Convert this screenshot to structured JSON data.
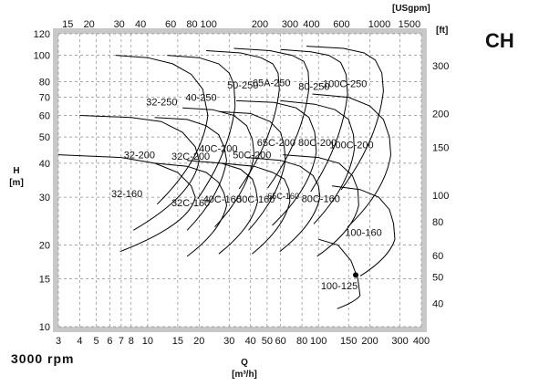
{
  "brand": "CH",
  "speed": "3000 rpm",
  "axis": {
    "y_label": "H",
    "y_unit": "[m]",
    "x_label": "Q",
    "x_unit": "[m³/h]",
    "top_unit": "[USgpm]",
    "right_unit": "[ft]"
  },
  "chart_data": {
    "type": "line",
    "xlabel": "Q [m³/h]",
    "ylabel": "H [m]",
    "x_scale": "log",
    "y_scale": "log",
    "xlim": [
      3,
      400
    ],
    "ylim": [
      10,
      120
    ],
    "x_ticks": [
      3,
      4,
      5,
      6,
      7,
      8,
      10,
      15,
      20,
      30,
      40,
      50,
      60,
      80,
      100,
      150,
      200,
      300,
      400
    ],
    "y_ticks": [
      10,
      15,
      20,
      30,
      40,
      50,
      60,
      70,
      80,
      100,
      120
    ],
    "top_axis": {
      "label": "[USgpm]",
      "ticks": [
        15,
        20,
        30,
        40,
        60,
        80,
        100,
        200,
        300,
        400,
        600,
        1000,
        1500
      ]
    },
    "right_axis": {
      "label": "[ft]",
      "ticks": [
        40,
        50,
        60,
        80,
        100,
        150,
        200,
        300
      ]
    },
    "series": [
      {
        "name": "32-250",
        "points": [
          [
            6.5,
            100
          ],
          [
            10,
            98
          ],
          [
            14,
            93
          ],
          [
            18,
            85
          ],
          [
            21,
            75
          ],
          [
            22.5,
            60
          ]
        ]
      },
      {
        "name": "40-250",
        "points": [
          [
            13,
            100
          ],
          [
            20,
            98
          ],
          [
            26,
            93
          ],
          [
            30,
            86
          ],
          [
            32,
            78
          ],
          [
            32.5,
            65
          ]
        ]
      },
      {
        "name": "50-250",
        "points": [
          [
            22,
            104
          ],
          [
            35,
            102
          ],
          [
            46,
            98
          ],
          [
            54,
            93
          ],
          [
            58,
            86
          ],
          [
            59,
            75
          ]
        ]
      },
      {
        "name": "65A-250",
        "points": [
          [
            32,
            106
          ],
          [
            52,
            104
          ],
          [
            70,
            100
          ],
          [
            82,
            95
          ],
          [
            87,
            87
          ],
          [
            88,
            76
          ]
        ]
      },
      {
        "name": "80-250",
        "points": [
          [
            60,
            105
          ],
          [
            90,
            103
          ],
          [
            115,
            100
          ],
          [
            135,
            94
          ],
          [
            145,
            85
          ],
          [
            148,
            72
          ]
        ]
      },
      {
        "name": "100C-250",
        "points": [
          [
            85,
            108
          ],
          [
            140,
            106
          ],
          [
            185,
            102
          ],
          [
            215,
            96
          ],
          [
            235,
            86
          ],
          [
            240,
            74
          ]
        ]
      },
      {
        "name": "32-200",
        "points": [
          [
            4,
            60
          ],
          [
            8,
            59
          ],
          [
            12,
            57
          ],
          [
            16,
            52
          ],
          [
            19,
            46
          ],
          [
            20,
            41
          ]
        ]
      },
      {
        "name": "32C-200",
        "points": [
          [
            11,
            59
          ],
          [
            17,
            58
          ],
          [
            22,
            55
          ],
          [
            26,
            51
          ],
          [
            28,
            46
          ],
          [
            29,
            41
          ]
        ]
      },
      {
        "name": "40C-200",
        "points": [
          [
            16,
            64
          ],
          [
            24,
            63
          ],
          [
            32,
            60
          ],
          [
            38,
            55
          ],
          [
            41,
            49
          ],
          [
            42,
            43
          ]
        ]
      },
      {
        "name": "50C-200",
        "points": [
          [
            26,
            62
          ],
          [
            40,
            61
          ],
          [
            52,
            57
          ],
          [
            60,
            52
          ],
          [
            63,
            46
          ],
          [
            64,
            41
          ]
        ]
      },
      {
        "name": "65C-200",
        "points": [
          [
            33,
            68
          ],
          [
            55,
            67
          ],
          [
            74,
            64
          ],
          [
            88,
            59
          ],
          [
            95,
            52
          ],
          [
            97,
            44
          ]
        ]
      },
      {
        "name": "80C-200",
        "points": [
          [
            60,
            68
          ],
          [
            95,
            66
          ],
          [
            125,
            63
          ],
          [
            150,
            58
          ],
          [
            160,
            51
          ],
          [
            162,
            45
          ]
        ]
      },
      {
        "name": "100C-200",
        "points": [
          [
            92,
            72
          ],
          [
            150,
            70
          ],
          [
            200,
            65
          ],
          [
            240,
            58
          ],
          [
            260,
            50
          ],
          [
            265,
            43
          ]
        ]
      },
      {
        "name": "32-160",
        "points": [
          [
            3,
            43
          ],
          [
            7,
            42
          ],
          [
            11,
            40
          ],
          [
            15,
            37
          ],
          [
            18,
            33
          ],
          [
            19,
            30
          ]
        ]
      },
      {
        "name": "32C-160",
        "points": [
          [
            11,
            40
          ],
          [
            17,
            39
          ],
          [
            22,
            37
          ],
          [
            26,
            34
          ],
          [
            28,
            31
          ],
          [
            29,
            28
          ]
        ]
      },
      {
        "name": "40C-160",
        "points": [
          [
            17,
            41
          ],
          [
            27,
            40
          ],
          [
            35,
            38
          ],
          [
            41,
            35
          ],
          [
            43,
            32
          ],
          [
            44,
            29
          ]
        ]
      },
      {
        "name": "50C-160",
        "points": [
          [
            27,
            40
          ],
          [
            42,
            39
          ],
          [
            54,
            37
          ],
          [
            63,
            35
          ],
          [
            67,
            32
          ],
          [
            68,
            29
          ]
        ]
      },
      {
        "name": "65C-160",
        "points": [
          [
            38,
            42
          ],
          [
            60,
            41
          ],
          [
            78,
            39
          ],
          [
            93,
            36
          ],
          [
            100,
            33
          ],
          [
            102,
            30
          ]
        ]
      },
      {
        "name": "80C-160",
        "points": [
          [
            62,
            43
          ],
          [
            100,
            42
          ],
          [
            132,
            40
          ],
          [
            158,
            36
          ],
          [
            170,
            32
          ],
          [
            172,
            28
          ]
        ]
      },
      {
        "name": "100-160",
        "points": [
          [
            120,
            33
          ],
          [
            175,
            32
          ],
          [
            225,
            30
          ],
          [
            260,
            27
          ],
          [
            275,
            24
          ],
          [
            280,
            21
          ]
        ]
      },
      {
        "name": "100-125",
        "points": [
          [
            100,
            21
          ],
          [
            130,
            20
          ],
          [
            155,
            17.5
          ],
          [
            170,
            15
          ],
          [
            175,
            13
          ]
        ]
      }
    ],
    "operating_point": {
      "q": 165,
      "h": 15.5
    }
  }
}
